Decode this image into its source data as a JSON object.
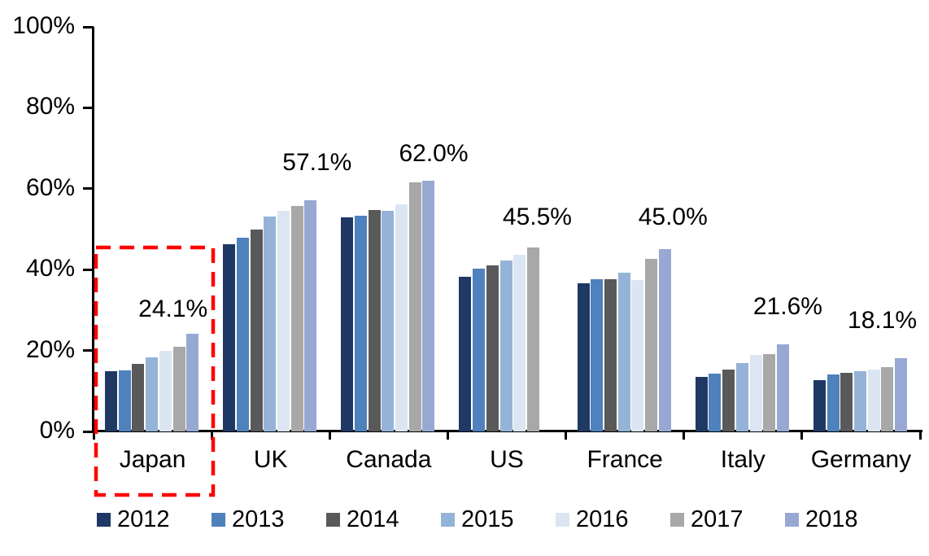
{
  "chart_data": {
    "type": "bar",
    "title": "",
    "xlabel": "",
    "ylabel": "",
    "ylim": [
      0,
      100
    ],
    "yticks": [
      "0%",
      "20%",
      "40%",
      "60%",
      "80%",
      "100%"
    ],
    "grid": false,
    "legend_position": "bottom",
    "categories": [
      "Japan",
      "UK",
      "Canada",
      "US",
      "France",
      "Italy",
      "Germany"
    ],
    "series": [
      {
        "name": "2012",
        "color": "#1F3864",
        "values": [
          14.8,
          46.3,
          53.0,
          38.3,
          36.6,
          13.4,
          12.6
        ]
      },
      {
        "name": "2013",
        "color": "#4F81BC",
        "values": [
          15.0,
          47.8,
          53.4,
          40.2,
          37.6,
          14.2,
          14.0
        ]
      },
      {
        "name": "2014",
        "color": "#595959",
        "values": [
          16.6,
          49.8,
          54.8,
          41.0,
          37.6,
          15.3,
          14.4
        ]
      },
      {
        "name": "2015",
        "color": "#95B3D7",
        "values": [
          18.3,
          53.2,
          54.5,
          42.2,
          39.2,
          16.9,
          14.8
        ]
      },
      {
        "name": "2016",
        "color": "#DCE6F2",
        "values": [
          20.0,
          54.5,
          56.1,
          43.6,
          37.4,
          19.0,
          15.3
        ]
      },
      {
        "name": "2017",
        "color": "#A8A8A8",
        "values": [
          21.0,
          55.8,
          61.5,
          45.5,
          42.6,
          19.1,
          15.9
        ]
      },
      {
        "name": "2018",
        "color": "#97A9D3",
        "values": [
          24.1,
          57.1,
          62.0,
          null,
          45.0,
          21.6,
          18.1
        ]
      }
    ],
    "data_labels": [
      "24.1%",
      "57.1%",
      "62.0%",
      "45.5%",
      "45.0%",
      "21.6%",
      "18.1%"
    ],
    "annotations": {
      "highlight_category": "Japan",
      "highlight_style": "red-dashed-box",
      "highlight_color": "#FF0000"
    }
  }
}
